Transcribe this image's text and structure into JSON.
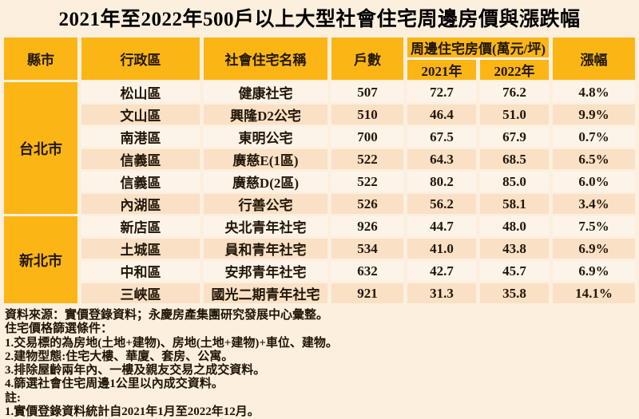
{
  "chart_data": {
    "type": "table",
    "title": "2021年至2022年500戶以上大型社會住宅周邊房價與漲跌幅",
    "header": {
      "county": "縣市",
      "district": "行政區",
      "name": "社會住宅名稱",
      "units": "戶數",
      "price_group": "周邊住宅房價(萬元/坪)",
      "y2021": "2021年",
      "y2022": "2022年",
      "change": "漲幅"
    },
    "groups": [
      {
        "county": "台北市",
        "rows": [
          {
            "district": "松山區",
            "name": "健康社宅",
            "units": "507",
            "p2021": "72.7",
            "p2022": "76.2",
            "change": "4.8%"
          },
          {
            "district": "文山區",
            "name": "興隆D2公宅",
            "units": "510",
            "p2021": "46.4",
            "p2022": "51.0",
            "change": "9.9%"
          },
          {
            "district": "南港區",
            "name": "東明公宅",
            "units": "700",
            "p2021": "67.5",
            "p2022": "67.9",
            "change": "0.7%"
          },
          {
            "district": "信義區",
            "name": "廣慈E(1區)",
            "units": "522",
            "p2021": "64.3",
            "p2022": "68.5",
            "change": "6.5%"
          },
          {
            "district": "信義區",
            "name": "廣慈D(2區)",
            "units": "522",
            "p2021": "80.2",
            "p2022": "85.0",
            "change": "6.0%"
          },
          {
            "district": "內湖區",
            "name": "行善公宅",
            "units": "526",
            "p2021": "56.2",
            "p2022": "58.1",
            "change": "3.4%"
          }
        ]
      },
      {
        "county": "新北市",
        "rows": [
          {
            "district": "新店區",
            "name": "央北青年社宅",
            "units": "926",
            "p2021": "44.7",
            "p2022": "48.0",
            "change": "7.5%"
          },
          {
            "district": "土城區",
            "name": "員和青年社宅",
            "units": "534",
            "p2021": "41.0",
            "p2022": "43.8",
            "change": "6.9%"
          },
          {
            "district": "中和區",
            "name": "安邦青年社宅",
            "units": "632",
            "p2021": "42.7",
            "p2022": "45.7",
            "change": "6.9%"
          },
          {
            "district": "三峽區",
            "name": "國光二期青年社宅",
            "units": "921",
            "p2021": "31.3",
            "p2022": "35.8",
            "change": "14.1%"
          }
        ]
      }
    ]
  },
  "notes": {
    "lines": [
      "資料來源：實價登錄資料；永慶房產集團研究發展中心彙整。",
      "住宅價格篩選條件：",
      "1.交易標的為房地(土地+建物)、房地(土地+建物)+車位、建物。",
      "2.建物型態:住宅大樓、華廈、套房、公寓。",
      "3.排除屋齡兩年內、一樓及親友交易之成交資料。",
      "4.篩選社會住宅周邊1公里以內成交資料。",
      "註:",
      "1.實價登錄資料統計自2021年1月至2022年12月。"
    ]
  },
  "colors": {
    "header_gold": "#FBB616",
    "row_light": "#FDF4E9",
    "row_dark": "#FAE0C5",
    "background": "#FCEFDE",
    "text": "#211708"
  }
}
